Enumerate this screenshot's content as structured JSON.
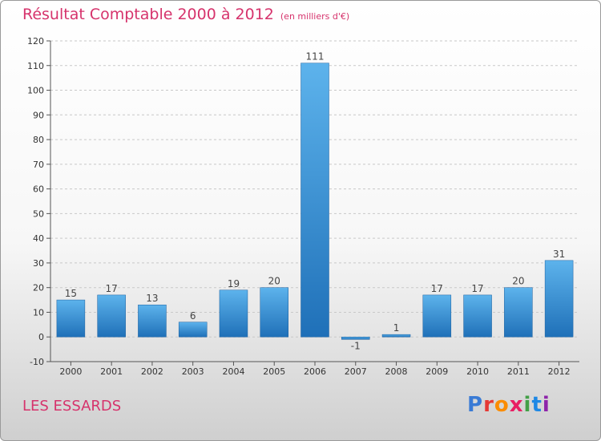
{
  "header": {
    "title": "Résultat Comptable 2000 à 2012",
    "unit": "(en milliers d'€)"
  },
  "footer": {
    "commune": "LES ESSARDS",
    "logo": [
      "P",
      "r",
      "o",
      "x",
      "i",
      "t",
      "i"
    ],
    "logo_colors": [
      "#3a7bd5",
      "#e53935",
      "#fb8c00",
      "#e91e63",
      "#43a047",
      "#1e88e5",
      "#8e24aa"
    ]
  },
  "colors": {
    "title": "#d6336c",
    "bar_light": "#5db3ec",
    "bar_dark": "#1f70b8",
    "grid": "#c8c8c8"
  },
  "chart_data": {
    "type": "bar",
    "title": "Résultat Comptable 2000 à 2012",
    "subtitle": "(en milliers d'€)",
    "categories": [
      "2000",
      "2001",
      "2002",
      "2003",
      "2004",
      "2005",
      "2006",
      "2007",
      "2008",
      "2009",
      "2010",
      "2011",
      "2012"
    ],
    "values": [
      15,
      17,
      13,
      6,
      19,
      20,
      111,
      -1,
      1,
      17,
      17,
      20,
      31
    ],
    "labels": [
      "15",
      "17",
      "13",
      "6",
      "19",
      "20",
      "111",
      "-1",
      "1",
      "17",
      "17",
      "20",
      "31"
    ],
    "ylim": [
      -10,
      120
    ],
    "yticks": [
      -10,
      0,
      10,
      20,
      30,
      40,
      50,
      60,
      70,
      80,
      90,
      100,
      110,
      120
    ],
    "grid": true,
    "legend": "none"
  }
}
